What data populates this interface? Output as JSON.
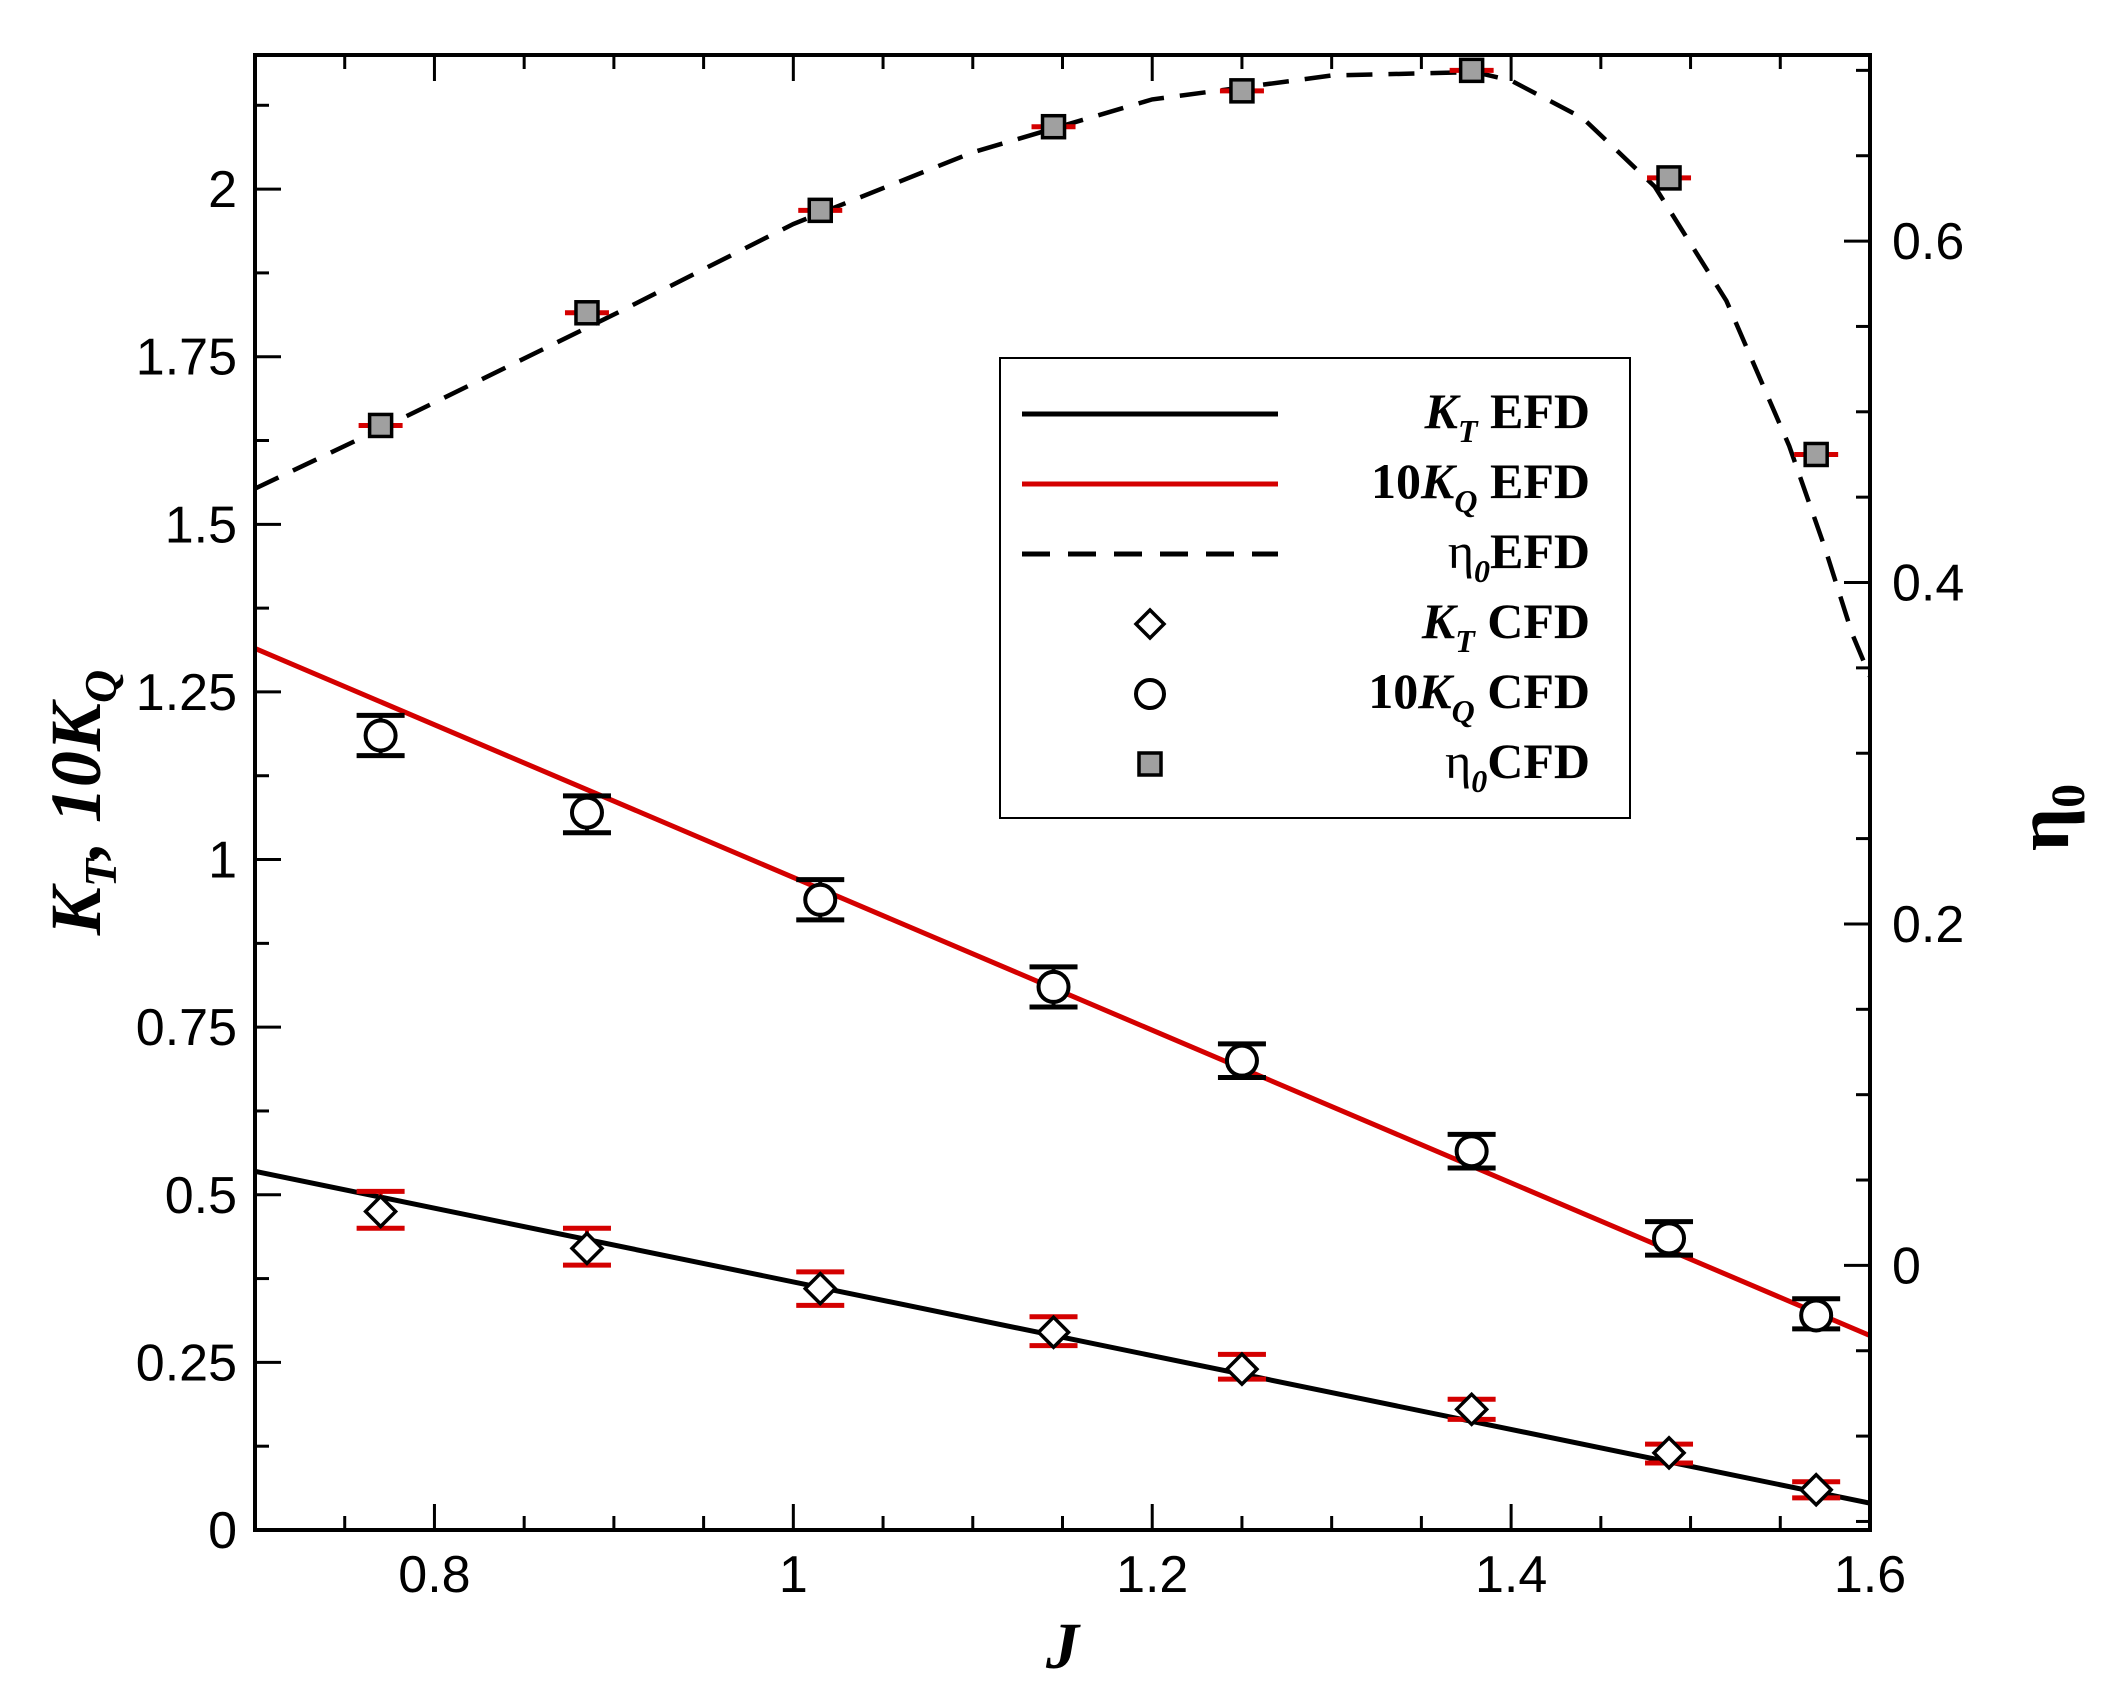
{
  "chart_data": {
    "type": "line",
    "x_axis": {
      "label": "J",
      "range": [
        0.7,
        1.6
      ],
      "ticks": [
        0.8,
        1.0,
        1.2,
        1.4,
        1.6
      ],
      "tick_labels": [
        "0.8",
        "1",
        "1.2",
        "1.4",
        "1.6"
      ]
    },
    "y_axis_left": {
      "label_parts": [
        "K",
        "T",
        ", 10K",
        "Q"
      ],
      "range": [
        0,
        2.2
      ],
      "ticks": [
        0,
        0.25,
        0.5,
        0.75,
        1,
        1.25,
        1.5,
        1.75,
        2
      ],
      "tick_labels": [
        "0",
        "0.25",
        "0.5",
        "0.75",
        "1",
        "1.25",
        "1.5",
        "1.75",
        "2"
      ]
    },
    "y_axis_right": {
      "label_parts": [
        "η",
        "0"
      ],
      "range": [
        -0.155,
        0.709
      ],
      "ticks": [
        0,
        0.2,
        0.4,
        0.6
      ],
      "tick_labels": [
        "0",
        "0.2",
        "0.4",
        "0.6"
      ]
    },
    "grid": false,
    "legend_position": "center-right",
    "legend": [
      {
        "prefix": "",
        "symbol": "K",
        "sub": "T",
        "suffix": " EFD",
        "marker": "solid-line",
        "color": "#000000"
      },
      {
        "prefix": "10",
        "symbol": "K",
        "sub": "Q",
        "suffix": " EFD",
        "marker": "solid-line",
        "color": "#d40000"
      },
      {
        "prefix": "",
        "symbol": "η",
        "sub": "0",
        "suffix": "EFD",
        "marker": "dashed-line",
        "color": "#000000"
      },
      {
        "prefix": "",
        "symbol": "K",
        "sub": "T",
        "suffix": " CFD",
        "marker": "diamond",
        "color": "#000000"
      },
      {
        "prefix": "10",
        "symbol": "K",
        "sub": "Q",
        "suffix": " CFD",
        "marker": "circle",
        "color": "#000000"
      },
      {
        "prefix": "",
        "symbol": "η",
        "sub": "0",
        "suffix": "CFD",
        "marker": "square",
        "color": "#000000"
      }
    ],
    "series": [
      {
        "name": "K_T EFD",
        "kind": "line",
        "axis": "left",
        "color": "#000000",
        "dash": false,
        "x": [
          0.7,
          1.6
        ],
        "y": [
          0.535,
          0.04
        ]
      },
      {
        "name": "10K_Q EFD",
        "kind": "line",
        "axis": "left",
        "color": "#d40000",
        "dash": false,
        "x": [
          0.7,
          1.6
        ],
        "y": [
          1.315,
          0.29
        ]
      },
      {
        "name": "η0 EFD",
        "kind": "line",
        "axis": "right",
        "color": "#000000",
        "dash": true,
        "x": [
          0.7,
          0.77,
          0.9,
          1.0,
          1.1,
          1.2,
          1.3,
          1.38,
          1.4,
          1.44,
          1.48,
          1.52,
          1.555,
          1.575,
          1.59,
          1.6
        ],
        "y": [
          0.455,
          0.49,
          0.557,
          0.61,
          0.652,
          0.683,
          0.697,
          0.699,
          0.694,
          0.672,
          0.632,
          0.565,
          0.48,
          0.42,
          0.37,
          0.345
        ]
      },
      {
        "name": "K_T CFD",
        "kind": "points",
        "marker": "diamond",
        "axis": "left",
        "x": [
          0.77,
          0.885,
          1.015,
          1.145,
          1.25,
          1.378,
          1.488,
          1.57
        ],
        "y": [
          0.475,
          0.42,
          0.36,
          0.295,
          0.24,
          0.18,
          0.115,
          0.06
        ],
        "err_high": [
          0.505,
          0.45,
          0.385,
          0.318,
          0.262,
          0.195,
          0.128,
          0.072
        ],
        "err_low": [
          0.45,
          0.395,
          0.335,
          0.275,
          0.225,
          0.165,
          0.1,
          0.048
        ],
        "err_color": "#d40000"
      },
      {
        "name": "10K_Q CFD",
        "kind": "points",
        "marker": "circle",
        "axis": "left",
        "x": [
          0.77,
          0.885,
          1.015,
          1.145,
          1.25,
          1.378,
          1.488,
          1.57
        ],
        "y": [
          1.185,
          1.07,
          0.94,
          0.81,
          0.7,
          0.565,
          0.435,
          0.32
        ],
        "err_high": [
          1.215,
          1.095,
          0.97,
          0.84,
          0.725,
          0.59,
          0.46,
          0.345
        ],
        "err_low": [
          1.155,
          1.04,
          0.91,
          0.78,
          0.675,
          0.54,
          0.41,
          0.3
        ],
        "err_color": "#000000"
      },
      {
        "name": "η0 CFD",
        "kind": "points",
        "marker": "square",
        "axis": "right",
        "x": [
          0.77,
          0.885,
          1.015,
          1.145,
          1.25,
          1.378,
          1.488,
          1.57
        ],
        "y": [
          0.492,
          0.558,
          0.618,
          0.667,
          0.688,
          0.7,
          0.637,
          0.475
        ],
        "err_color": "#d40000"
      }
    ]
  }
}
